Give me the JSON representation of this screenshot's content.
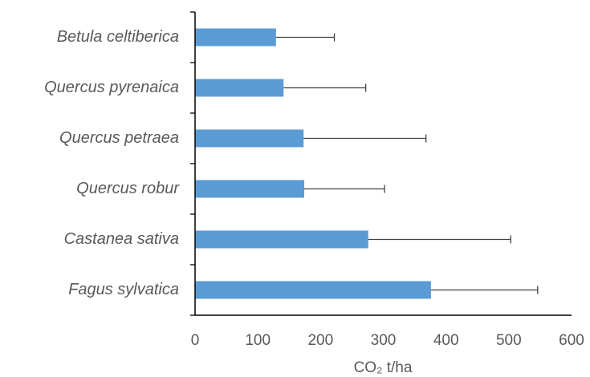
{
  "chart_data": {
    "type": "bar",
    "orientation": "horizontal",
    "xlabel": "CO₂ t/ha",
    "categories": [
      "Betula celtiberica",
      "Quercus pyrenaica",
      "Quercus petraea",
      "Quercus robur",
      "Castanea sativa",
      "Fagus sylvatica"
    ],
    "values": [
      129,
      141,
      173,
      174,
      276,
      376
    ],
    "errors": [
      93,
      131,
      195,
      128,
      227,
      170
    ],
    "color": "#5b9bd5",
    "xlim": [
      0,
      600
    ],
    "xticks": [
      0,
      100,
      200,
      300,
      400,
      500,
      600
    ],
    "grid": false
  }
}
